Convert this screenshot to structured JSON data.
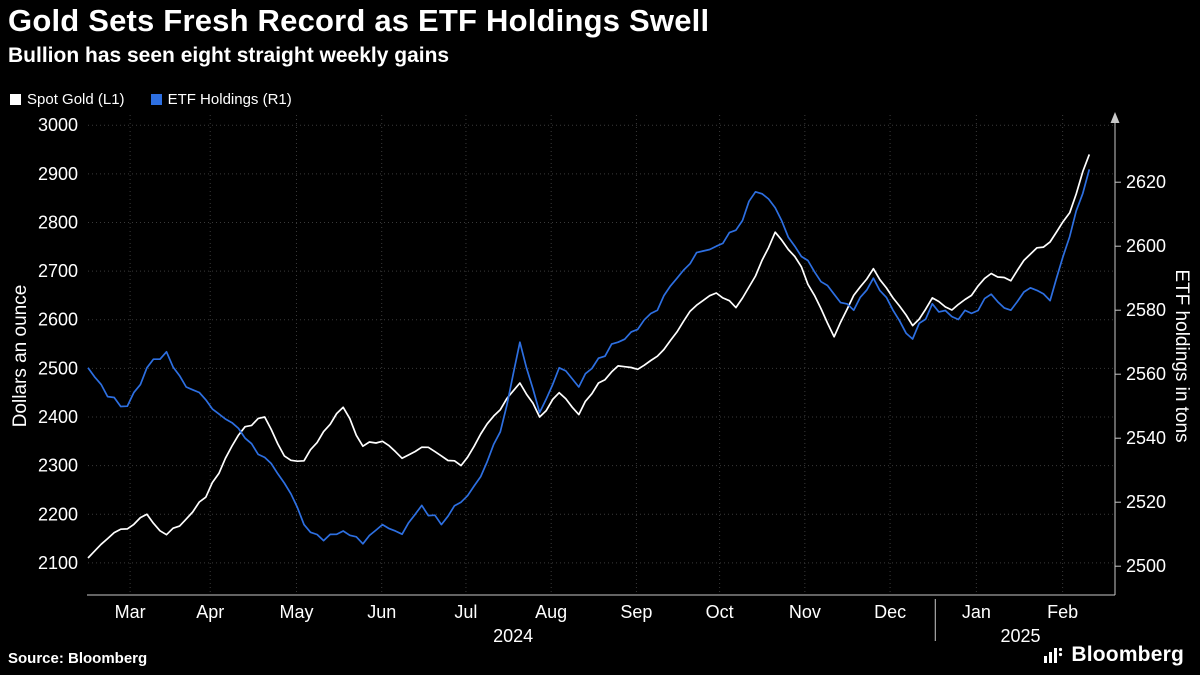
{
  "header": {
    "title": "Gold Sets Fresh Record as ETF Holdings Swell",
    "subtitle": "Bullion has seen eight straight weekly gains"
  },
  "legend": [
    {
      "label": "Spot Gold (L1)",
      "color": "#ffffff"
    },
    {
      "label": "ETF Holdings (R1)",
      "color": "#2d6fe1"
    }
  ],
  "footer": {
    "source": "Source: Bloomberg",
    "brand": "Bloomberg"
  },
  "chart_data": {
    "type": "line",
    "title": "Gold Sets Fresh Record as ETF Holdings Swell",
    "subtitle": "Bullion has seen eight straight weekly gains",
    "grid": "dotted",
    "legend_position": "top-left",
    "colors": {
      "background": "#000000",
      "grid": "#3a3a3a",
      "axis": "#c9c9c9",
      "text": "#ffffff"
    },
    "left_axis": {
      "label": "Dollars an ounce",
      "ticks": [
        2100,
        2200,
        2300,
        2400,
        2500,
        2600,
        2700,
        2800,
        2900,
        3000
      ],
      "range": [
        2034,
        3021
      ]
    },
    "right_axis": {
      "label": "ETF holdings in tons",
      "ticks": [
        2500,
        2520,
        2540,
        2560,
        2580,
        2600,
        2620
      ],
      "range": [
        2491,
        2641
      ]
    },
    "x_ticks": [
      {
        "label": "Mar",
        "f": 0.041
      },
      {
        "label": "Apr",
        "f": 0.119
      },
      {
        "label": "May",
        "f": 0.203
      },
      {
        "label": "Jun",
        "f": 0.286
      },
      {
        "label": "Jul",
        "f": 0.368
      },
      {
        "label": "Aug",
        "f": 0.451
      },
      {
        "label": "Sep",
        "f": 0.534
      },
      {
        "label": "Oct",
        "f": 0.615
      },
      {
        "label": "Nov",
        "f": 0.698
      },
      {
        "label": "Dec",
        "f": 0.781
      },
      {
        "label": "Jan",
        "f": 0.865
      },
      {
        "label": "Feb",
        "f": 0.949
      }
    ],
    "year_labels": [
      {
        "label": "2024",
        "f": 0.414
      },
      {
        "label": "2025",
        "f": 0.908
      }
    ],
    "year_divider_f": 0.825,
    "data_span_frac": 0.975,
    "series": [
      {
        "name": "Spot Gold (L1)",
        "axis": "left",
        "color": "#ffffff",
        "values": [
          2110,
          2150,
          2170,
          2200,
          2158,
          2190,
          2235,
          2315,
          2380,
          2400,
          2320,
          2310,
          2370,
          2420,
          2340,
          2350,
          2315,
          2338,
          2320,
          2300,
          2365,
          2415,
          2470,
          2400,
          2450,
          2405,
          2470,
          2505,
          2498,
          2525,
          2575,
          2630,
          2655,
          2625,
          2690,
          2780,
          2730,
          2650,
          2565,
          2650,
          2705,
          2645,
          2588,
          2645,
          2620,
          2650,
          2695,
          2680,
          2735,
          2760,
          2820,
          2940
        ]
      },
      {
        "name": "ETF Holdings (R1)",
        "axis": "right",
        "color": "#2d6fe1",
        "values": [
          2562,
          2553,
          2550,
          2562,
          2567,
          2556,
          2552,
          2546,
          2540,
          2534,
          2526,
          2513,
          2508,
          2511,
          2507,
          2513,
          2510,
          2519,
          2513,
          2520,
          2528,
          2542,
          2570,
          2548,
          2562,
          2556,
          2565,
          2570,
          2574,
          2580,
          2590,
          2598,
          2600,
          2605,
          2617,
          2612,
          2600,
          2592,
          2585,
          2580,
          2590,
          2580,
          2571,
          2582,
          2578,
          2579,
          2585,
          2580,
          2587,
          2583,
          2603,
          2624
        ]
      }
    ]
  }
}
